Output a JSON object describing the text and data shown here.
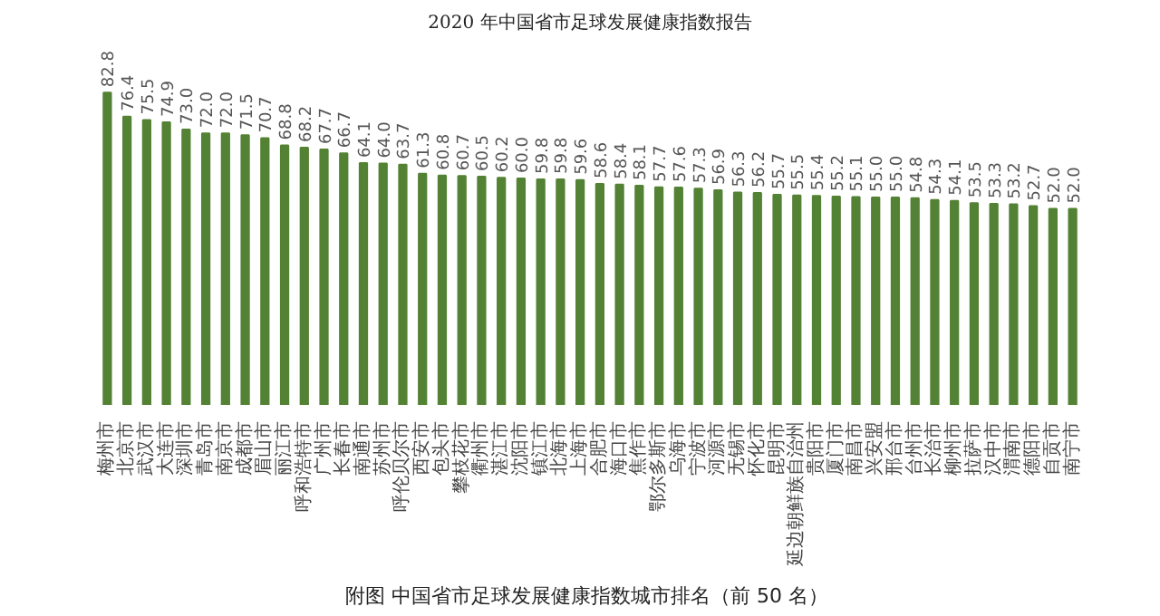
{
  "chart_data": {
    "type": "bar",
    "title": "附图  中国省市足球发展健康指数城市排名（前 50 名）",
    "annotations": [
      "2020 年中国省市足球发展健康指数报告"
    ],
    "categories": [
      "梅州市",
      "北京市",
      "武汉市",
      "大连市",
      "深圳市",
      "青岛市",
      "南京市",
      "成都市",
      "眉山市",
      "丽江市",
      "呼和浩特市",
      "广州市",
      "长春市",
      "南通市",
      "苏州市",
      "呼伦贝尔市",
      "西安市",
      "包头市",
      "攀枝花市",
      "衢州市",
      "湛江市",
      "沈阳市",
      "镇江市",
      "北海市",
      "上海市",
      "合肥市",
      "海口市",
      "焦作市",
      "鄂尔多斯市",
      "乌海市",
      "宁波市",
      "河源市",
      "无锡市",
      "怀化市",
      "昆明市",
      "延边朝鲜族自治州",
      "贵阳市",
      "厦门市",
      "南昌市",
      "兴安盟",
      "邢台市",
      "台州市",
      "长治市",
      "柳州市",
      "拉萨市",
      "汉中市",
      "渭南市",
      "德阳市",
      "自贡市",
      "南宁市"
    ],
    "values": [
      82.8,
      76.4,
      75.5,
      74.9,
      73.0,
      72.0,
      72.0,
      71.5,
      70.7,
      68.8,
      68.2,
      67.7,
      66.7,
      64.1,
      64.0,
      63.7,
      61.3,
      60.8,
      60.7,
      60.5,
      60.2,
      60.0,
      59.8,
      59.8,
      59.6,
      58.6,
      58.4,
      58.1,
      57.7,
      57.6,
      57.3,
      56.9,
      56.3,
      56.2,
      55.7,
      55.5,
      55.4,
      55.2,
      55.1,
      55.0,
      55.0,
      54.8,
      54.3,
      54.1,
      53.5,
      53.3,
      53.2,
      52.7,
      52.0,
      52.0
    ],
    "value_labels": [
      "82.8",
      "76.4",
      "75.5",
      "74.9",
      "73.0",
      "72.0",
      "72.0",
      "71.5",
      "70.7",
      "68.8",
      "68.2",
      "67.7",
      "66.7",
      "64.1",
      "64.0",
      "63.7",
      "61.3",
      "60.8",
      "60.7",
      "60.5",
      "60.2",
      "60.0",
      "59.8",
      "59.8",
      "59.6",
      "58.6",
      "58.4",
      "58.1",
      "57.7",
      "57.6",
      "57.3",
      "56.9",
      "56.3",
      "56.2",
      "55.7",
      "55.5",
      "55.4",
      "55.2",
      "55.1",
      "55.0",
      "55.0",
      "54.8",
      "54.3",
      "54.1",
      "53.5",
      "53.3",
      "53.2",
      "52.7",
      "52.0",
      "52.0"
    ],
    "color": "#548235",
    "tick_labels": "x",
    "grid": false
  }
}
